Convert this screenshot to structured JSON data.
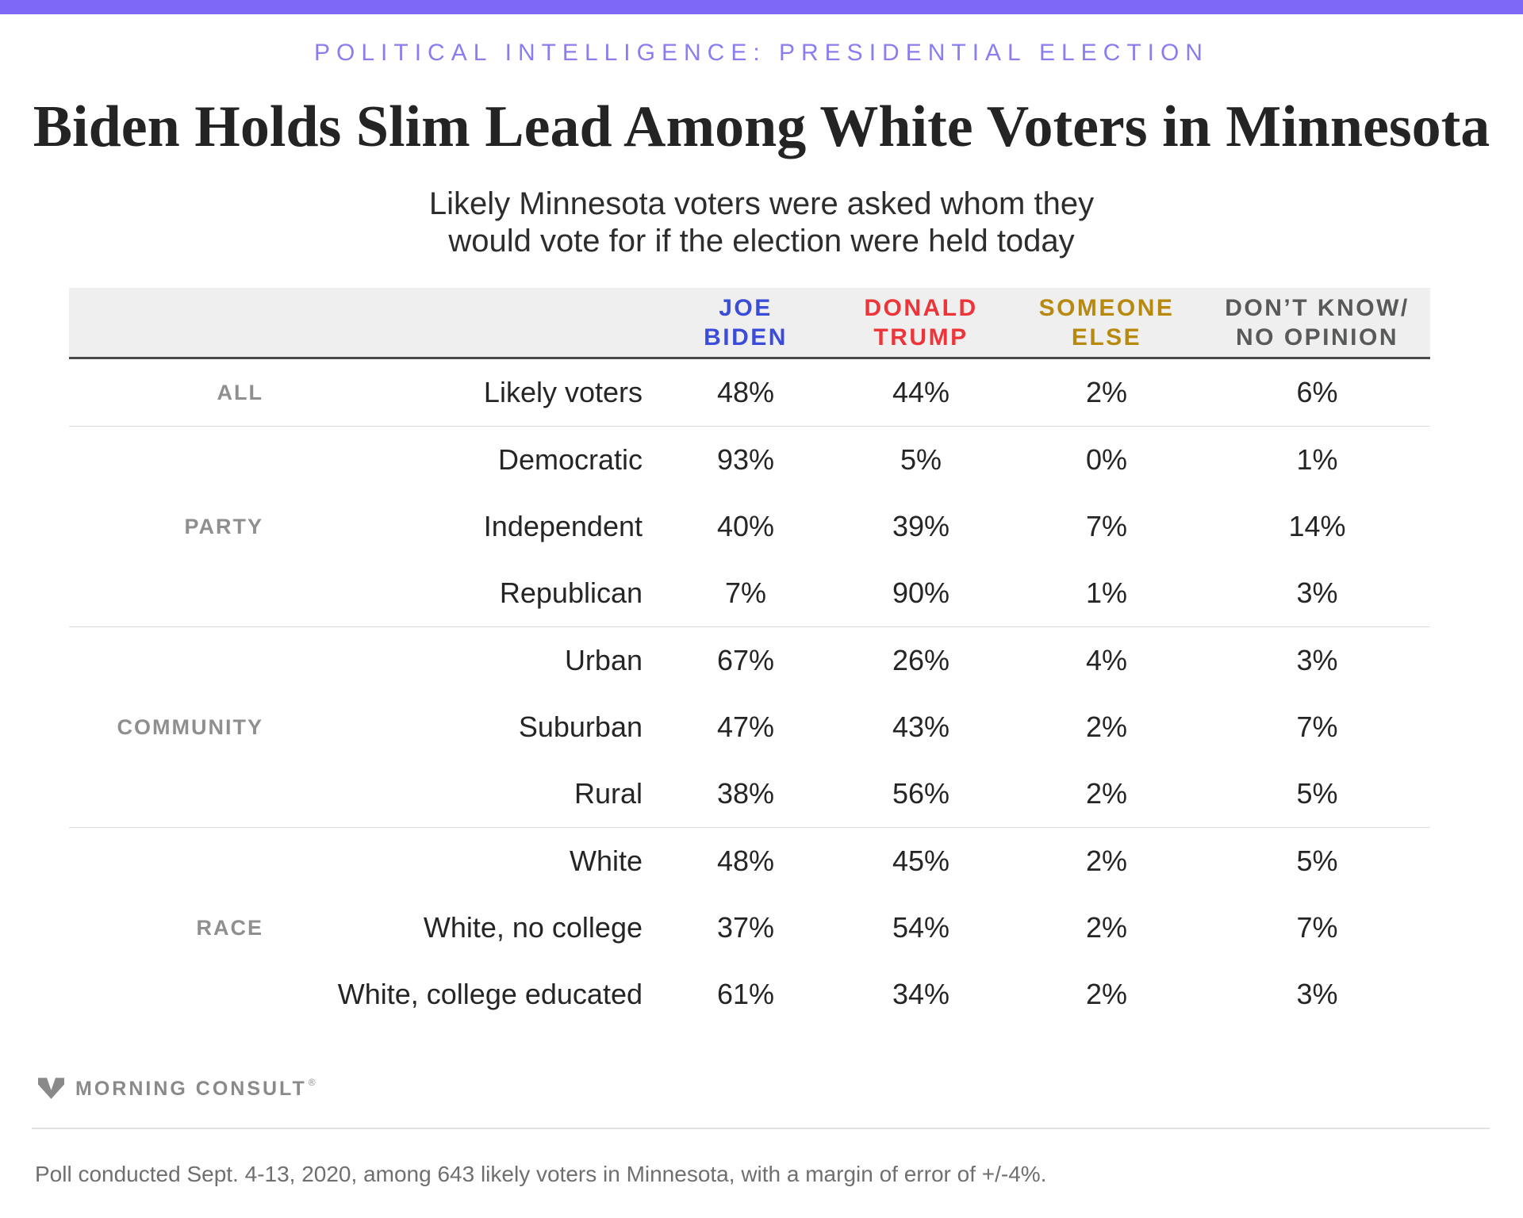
{
  "banner_color": "#7d68f7",
  "kicker": "POLITICAL INTELLIGENCE: PRESIDENTIAL ELECTION",
  "title": "Biden Holds Slim Lead Among White Voters in Minnesota",
  "subtitle_line1": "Likely Minnesota voters were asked whom they",
  "subtitle_line2": "would vote for if the election were held today",
  "table": {
    "columns": [
      {
        "label_line1": "JOE",
        "label_line2": "BIDEN",
        "color": "#3b4dd8"
      },
      {
        "label_line1": "DONALD",
        "label_line2": "TRUMP",
        "color": "#ed3439"
      },
      {
        "label_line1": "SOMEONE",
        "label_line2": "ELSE",
        "color": "#b8890f"
      },
      {
        "label_line1": "DON’T KNOW/",
        "label_line2": "NO OPINION",
        "color": "#58595b"
      }
    ],
    "sections": [
      {
        "group": "ALL",
        "rows": [
          {
            "label": "Likely voters",
            "values": [
              "48%",
              "44%",
              "2%",
              "6%"
            ]
          }
        ]
      },
      {
        "group": "PARTY",
        "rows": [
          {
            "label": "Democratic",
            "values": [
              "93%",
              "5%",
              "0%",
              "1%"
            ]
          },
          {
            "label": "Independent",
            "values": [
              "40%",
              "39%",
              "7%",
              "14%"
            ]
          },
          {
            "label": "Republican",
            "values": [
              "7%",
              "90%",
              "1%",
              "3%"
            ]
          }
        ]
      },
      {
        "group": "COMMUNITY",
        "rows": [
          {
            "label": "Urban",
            "values": [
              "67%",
              "26%",
              "4%",
              "3%"
            ]
          },
          {
            "label": "Suburban",
            "values": [
              "47%",
              "43%",
              "2%",
              "7%"
            ]
          },
          {
            "label": "Rural",
            "values": [
              "38%",
              "56%",
              "2%",
              "5%"
            ]
          }
        ]
      },
      {
        "group": "RACE",
        "rows": [
          {
            "label": "White",
            "values": [
              "48%",
              "45%",
              "2%",
              "5%"
            ]
          },
          {
            "label": "White, no college",
            "values": [
              "37%",
              "54%",
              "2%",
              "7%"
            ]
          },
          {
            "label": "White, college educated",
            "values": [
              "61%",
              "34%",
              "2%",
              "3%"
            ]
          }
        ]
      }
    ]
  },
  "footer": {
    "logo_text": "MORNING CONSULT",
    "registered_mark": "®"
  },
  "footnote": "Poll conducted Sept. 4-13, 2020, among 643 likely voters in Minnesota, with a margin of error of +/-4%.",
  "chart_data": {
    "type": "table",
    "title": "Biden Holds Slim Lead Among White Voters in Minnesota",
    "subtitle": "Likely Minnesota voters were asked whom they would vote for if the election were held today",
    "kicker": "POLITICAL INTELLIGENCE: PRESIDENTIAL ELECTION",
    "columns": [
      "Joe Biden",
      "Donald Trump",
      "Someone Else",
      "Don’t Know/No Opinion"
    ],
    "column_colors": [
      "#3b4dd8",
      "#ed3439",
      "#b8890f",
      "#58595b"
    ],
    "groups": [
      {
        "group": "All",
        "rows": [
          {
            "label": "Likely voters",
            "joe_biden": 48,
            "donald_trump": 44,
            "someone_else": 2,
            "dont_know": 6
          }
        ]
      },
      {
        "group": "Party",
        "rows": [
          {
            "label": "Democratic",
            "joe_biden": 93,
            "donald_trump": 5,
            "someone_else": 0,
            "dont_know": 1
          },
          {
            "label": "Independent",
            "joe_biden": 40,
            "donald_trump": 39,
            "someone_else": 7,
            "dont_know": 14
          },
          {
            "label": "Republican",
            "joe_biden": 7,
            "donald_trump": 90,
            "someone_else": 1,
            "dont_know": 3
          }
        ]
      },
      {
        "group": "Community",
        "rows": [
          {
            "label": "Urban",
            "joe_biden": 67,
            "donald_trump": 26,
            "someone_else": 4,
            "dont_know": 3
          },
          {
            "label": "Suburban",
            "joe_biden": 47,
            "donald_trump": 43,
            "someone_else": 2,
            "dont_know": 7
          },
          {
            "label": "Rural",
            "joe_biden": 38,
            "donald_trump": 56,
            "someone_else": 2,
            "dont_know": 5
          }
        ]
      },
      {
        "group": "Race",
        "rows": [
          {
            "label": "White",
            "joe_biden": 48,
            "donald_trump": 45,
            "someone_else": 2,
            "dont_know": 5
          },
          {
            "label": "White, no college",
            "joe_biden": 37,
            "donald_trump": 54,
            "someone_else": 2,
            "dont_know": 7
          },
          {
            "label": "White, college educated",
            "joe_biden": 61,
            "donald_trump": 34,
            "someone_else": 2,
            "dont_know": 3
          }
        ]
      }
    ],
    "units": "percent",
    "source_note": "Poll conducted Sept. 4-13, 2020, among 643 likely voters in Minnesota, with a margin of error of +/-4%."
  }
}
